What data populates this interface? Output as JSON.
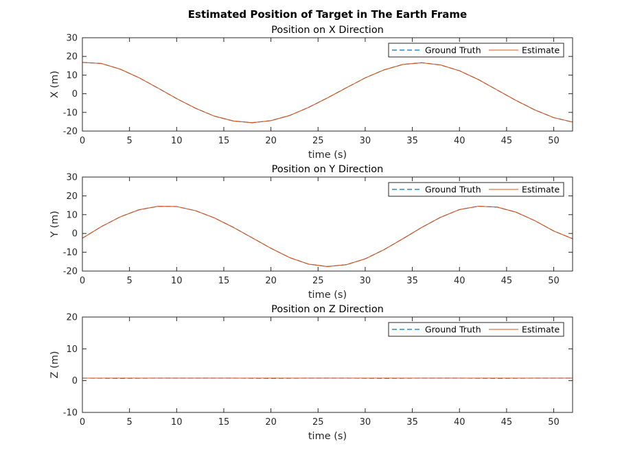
{
  "figure": {
    "suptitle": "Estimated Position of Target in The Earth Frame"
  },
  "colors": {
    "ground_truth": "#0072BD",
    "estimate": "#D95319",
    "axes": "#262626"
  },
  "chart_data": [
    {
      "type": "line",
      "title": "Position on X Direction",
      "xlabel": "time (s)",
      "ylabel": "X (m)",
      "xlim": [
        0,
        52
      ],
      "ylim": [
        -20,
        30
      ],
      "xticks": [
        0,
        5,
        10,
        15,
        20,
        25,
        30,
        35,
        40,
        45,
        50
      ],
      "yticks": [
        -20,
        -10,
        0,
        10,
        20,
        30
      ],
      "legend_position": "top-right",
      "x": [
        0,
        2,
        4,
        6,
        8,
        10,
        12,
        14,
        16,
        18,
        20,
        22,
        24,
        26,
        28,
        30,
        32,
        34,
        36,
        38,
        40,
        42,
        44,
        46,
        48,
        50,
        52
      ],
      "series": [
        {
          "name": "Ground Truth",
          "style": "dashed",
          "values": [
            16.8,
            16.2,
            13.2,
            8.6,
            3.1,
            -2.6,
            -7.8,
            -12.0,
            -14.6,
            -15.5,
            -14.4,
            -11.6,
            -7.3,
            -2.2,
            3.2,
            8.5,
            12.8,
            15.7,
            16.6,
            15.4,
            12.3,
            7.6,
            2.0,
            -3.6,
            -8.7,
            -12.8,
            -15.2
          ]
        },
        {
          "name": "Estimate",
          "style": "solid",
          "values": [
            16.8,
            16.2,
            13.2,
            8.6,
            3.1,
            -2.6,
            -7.8,
            -12.0,
            -14.6,
            -15.5,
            -14.4,
            -11.6,
            -7.3,
            -2.2,
            3.2,
            8.5,
            12.8,
            15.7,
            16.6,
            15.4,
            12.3,
            7.6,
            2.0,
            -3.6,
            -8.7,
            -12.8,
            -15.2
          ]
        }
      ]
    },
    {
      "type": "line",
      "title": "Position on Y Direction",
      "xlabel": "time (s)",
      "ylabel": "Y (m)",
      "xlim": [
        0,
        52
      ],
      "ylim": [
        -20,
        30
      ],
      "xticks": [
        0,
        5,
        10,
        15,
        20,
        25,
        30,
        35,
        40,
        45,
        50
      ],
      "yticks": [
        -20,
        -10,
        0,
        10,
        20,
        30
      ],
      "legend_position": "top-right",
      "x": [
        0,
        2,
        4,
        6,
        8,
        10,
        12,
        14,
        16,
        18,
        20,
        22,
        24,
        26,
        28,
        30,
        32,
        34,
        36,
        38,
        40,
        42,
        44,
        46,
        48,
        50,
        52
      ],
      "series": [
        {
          "name": "Ground Truth",
          "style": "dashed",
          "values": [
            -2.5,
            3.6,
            8.8,
            12.6,
            14.4,
            14.3,
            12.1,
            8.3,
            3.3,
            -2.3,
            -7.9,
            -12.9,
            -16.3,
            -17.6,
            -16.6,
            -13.5,
            -8.6,
            -2.8,
            3.2,
            8.6,
            12.7,
            14.5,
            14.0,
            11.3,
            6.8,
            1.3,
            -2.8
          ]
        },
        {
          "name": "Estimate",
          "style": "solid",
          "values": [
            -2.5,
            3.6,
            8.8,
            12.6,
            14.4,
            14.3,
            12.1,
            8.3,
            3.3,
            -2.3,
            -7.9,
            -12.9,
            -16.3,
            -17.6,
            -16.6,
            -13.5,
            -8.6,
            -2.8,
            3.2,
            8.6,
            12.7,
            14.5,
            14.0,
            11.3,
            6.8,
            1.3,
            -2.8
          ]
        }
      ]
    },
    {
      "type": "line",
      "title": "Position on Z Direction",
      "xlabel": "time (s)",
      "ylabel": "Z (m)",
      "xlim": [
        0,
        52
      ],
      "ylim": [
        -10,
        20
      ],
      "xticks": [
        0,
        5,
        10,
        15,
        20,
        25,
        30,
        35,
        40,
        45,
        50
      ],
      "yticks": [
        -10,
        0,
        10,
        20
      ],
      "legend_position": "top-right",
      "x": [
        0,
        4,
        8,
        12,
        16,
        20,
        24,
        28,
        32,
        36,
        40,
        44,
        48,
        52
      ],
      "series": [
        {
          "name": "Ground Truth",
          "style": "dashed",
          "values": [
            0.8,
            0.7,
            0.8,
            0.8,
            0.8,
            0.7,
            0.8,
            0.8,
            0.7,
            0.8,
            0.8,
            0.7,
            0.8,
            0.8
          ]
        },
        {
          "name": "Estimate",
          "style": "solid",
          "values": [
            0.8,
            0.8,
            0.8,
            0.8,
            0.8,
            0.8,
            0.8,
            0.8,
            0.8,
            0.8,
            0.8,
            0.8,
            0.8,
            0.8
          ]
        }
      ]
    }
  ]
}
